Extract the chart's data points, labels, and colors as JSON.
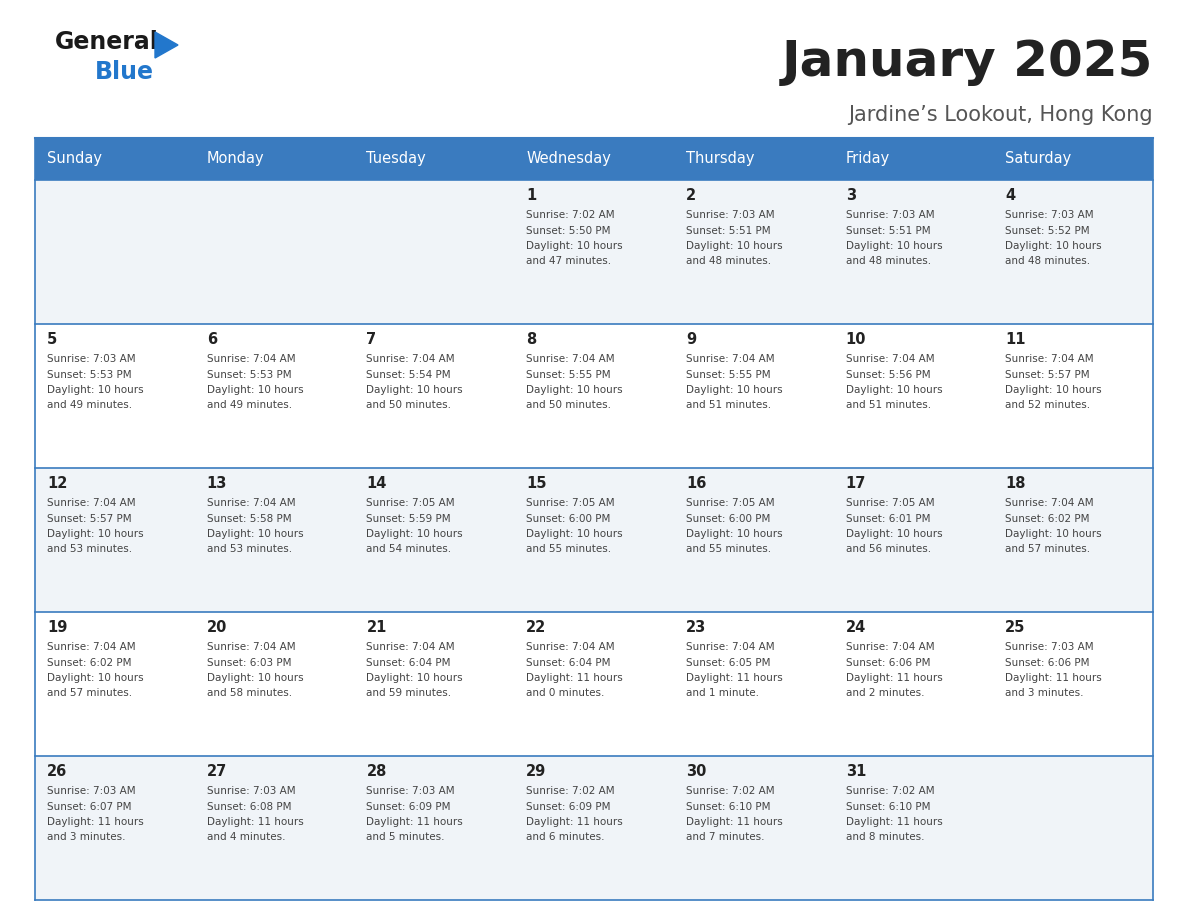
{
  "title": "January 2025",
  "subtitle": "Jardine’s Lookout, Hong Kong",
  "header_bg": "#3a7bbf",
  "header_text_color": "#ffffff",
  "row_bg_light": "#f0f4f8",
  "row_bg_white": "#ffffff",
  "border_color": "#3a7bbf",
  "day_headers": [
    "Sunday",
    "Monday",
    "Tuesday",
    "Wednesday",
    "Thursday",
    "Friday",
    "Saturday"
  ],
  "title_color": "#222222",
  "subtitle_color": "#555555",
  "day_num_color": "#222222",
  "info_color": "#444444",
  "logo_general_color": "#1a1a1a",
  "logo_blue_color": "#2277cc",
  "weeks": [
    [
      {
        "day": "",
        "sunrise": "",
        "sunset": "",
        "daylight": ""
      },
      {
        "day": "",
        "sunrise": "",
        "sunset": "",
        "daylight": ""
      },
      {
        "day": "",
        "sunrise": "",
        "sunset": "",
        "daylight": ""
      },
      {
        "day": "1",
        "sunrise": "7:02 AM",
        "sunset": "5:50 PM",
        "daylight": "10 hours and 47 minutes."
      },
      {
        "day": "2",
        "sunrise": "7:03 AM",
        "sunset": "5:51 PM",
        "daylight": "10 hours and 48 minutes."
      },
      {
        "day": "3",
        "sunrise": "7:03 AM",
        "sunset": "5:51 PM",
        "daylight": "10 hours and 48 minutes."
      },
      {
        "day": "4",
        "sunrise": "7:03 AM",
        "sunset": "5:52 PM",
        "daylight": "10 hours and 48 minutes."
      }
    ],
    [
      {
        "day": "5",
        "sunrise": "7:03 AM",
        "sunset": "5:53 PM",
        "daylight": "10 hours and 49 minutes."
      },
      {
        "day": "6",
        "sunrise": "7:04 AM",
        "sunset": "5:53 PM",
        "daylight": "10 hours and 49 minutes."
      },
      {
        "day": "7",
        "sunrise": "7:04 AM",
        "sunset": "5:54 PM",
        "daylight": "10 hours and 50 minutes."
      },
      {
        "day": "8",
        "sunrise": "7:04 AM",
        "sunset": "5:55 PM",
        "daylight": "10 hours and 50 minutes."
      },
      {
        "day": "9",
        "sunrise": "7:04 AM",
        "sunset": "5:55 PM",
        "daylight": "10 hours and 51 minutes."
      },
      {
        "day": "10",
        "sunrise": "7:04 AM",
        "sunset": "5:56 PM",
        "daylight": "10 hours and 51 minutes."
      },
      {
        "day": "11",
        "sunrise": "7:04 AM",
        "sunset": "5:57 PM",
        "daylight": "10 hours and 52 minutes."
      }
    ],
    [
      {
        "day": "12",
        "sunrise": "7:04 AM",
        "sunset": "5:57 PM",
        "daylight": "10 hours and 53 minutes."
      },
      {
        "day": "13",
        "sunrise": "7:04 AM",
        "sunset": "5:58 PM",
        "daylight": "10 hours and 53 minutes."
      },
      {
        "day": "14",
        "sunrise": "7:05 AM",
        "sunset": "5:59 PM",
        "daylight": "10 hours and 54 minutes."
      },
      {
        "day": "15",
        "sunrise": "7:05 AM",
        "sunset": "6:00 PM",
        "daylight": "10 hours and 55 minutes."
      },
      {
        "day": "16",
        "sunrise": "7:05 AM",
        "sunset": "6:00 PM",
        "daylight": "10 hours and 55 minutes."
      },
      {
        "day": "17",
        "sunrise": "7:05 AM",
        "sunset": "6:01 PM",
        "daylight": "10 hours and 56 minutes."
      },
      {
        "day": "18",
        "sunrise": "7:04 AM",
        "sunset": "6:02 PM",
        "daylight": "10 hours and 57 minutes."
      }
    ],
    [
      {
        "day": "19",
        "sunrise": "7:04 AM",
        "sunset": "6:02 PM",
        "daylight": "10 hours and 57 minutes."
      },
      {
        "day": "20",
        "sunrise": "7:04 AM",
        "sunset": "6:03 PM",
        "daylight": "10 hours and 58 minutes."
      },
      {
        "day": "21",
        "sunrise": "7:04 AM",
        "sunset": "6:04 PM",
        "daylight": "10 hours and 59 minutes."
      },
      {
        "day": "22",
        "sunrise": "7:04 AM",
        "sunset": "6:04 PM",
        "daylight": "11 hours and 0 minutes."
      },
      {
        "day": "23",
        "sunrise": "7:04 AM",
        "sunset": "6:05 PM",
        "daylight": "11 hours and 1 minute."
      },
      {
        "day": "24",
        "sunrise": "7:04 AM",
        "sunset": "6:06 PM",
        "daylight": "11 hours and 2 minutes."
      },
      {
        "day": "25",
        "sunrise": "7:03 AM",
        "sunset": "6:06 PM",
        "daylight": "11 hours and 3 minutes."
      }
    ],
    [
      {
        "day": "26",
        "sunrise": "7:03 AM",
        "sunset": "6:07 PM",
        "daylight": "11 hours and 3 minutes."
      },
      {
        "day": "27",
        "sunrise": "7:03 AM",
        "sunset": "6:08 PM",
        "daylight": "11 hours and 4 minutes."
      },
      {
        "day": "28",
        "sunrise": "7:03 AM",
        "sunset": "6:09 PM",
        "daylight": "11 hours and 5 minutes."
      },
      {
        "day": "29",
        "sunrise": "7:02 AM",
        "sunset": "6:09 PM",
        "daylight": "11 hours and 6 minutes."
      },
      {
        "day": "30",
        "sunrise": "7:02 AM",
        "sunset": "6:10 PM",
        "daylight": "11 hours and 7 minutes."
      },
      {
        "day": "31",
        "sunrise": "7:02 AM",
        "sunset": "6:10 PM",
        "daylight": "11 hours and 8 minutes."
      },
      {
        "day": "",
        "sunrise": "",
        "sunset": "",
        "daylight": ""
      }
    ]
  ]
}
